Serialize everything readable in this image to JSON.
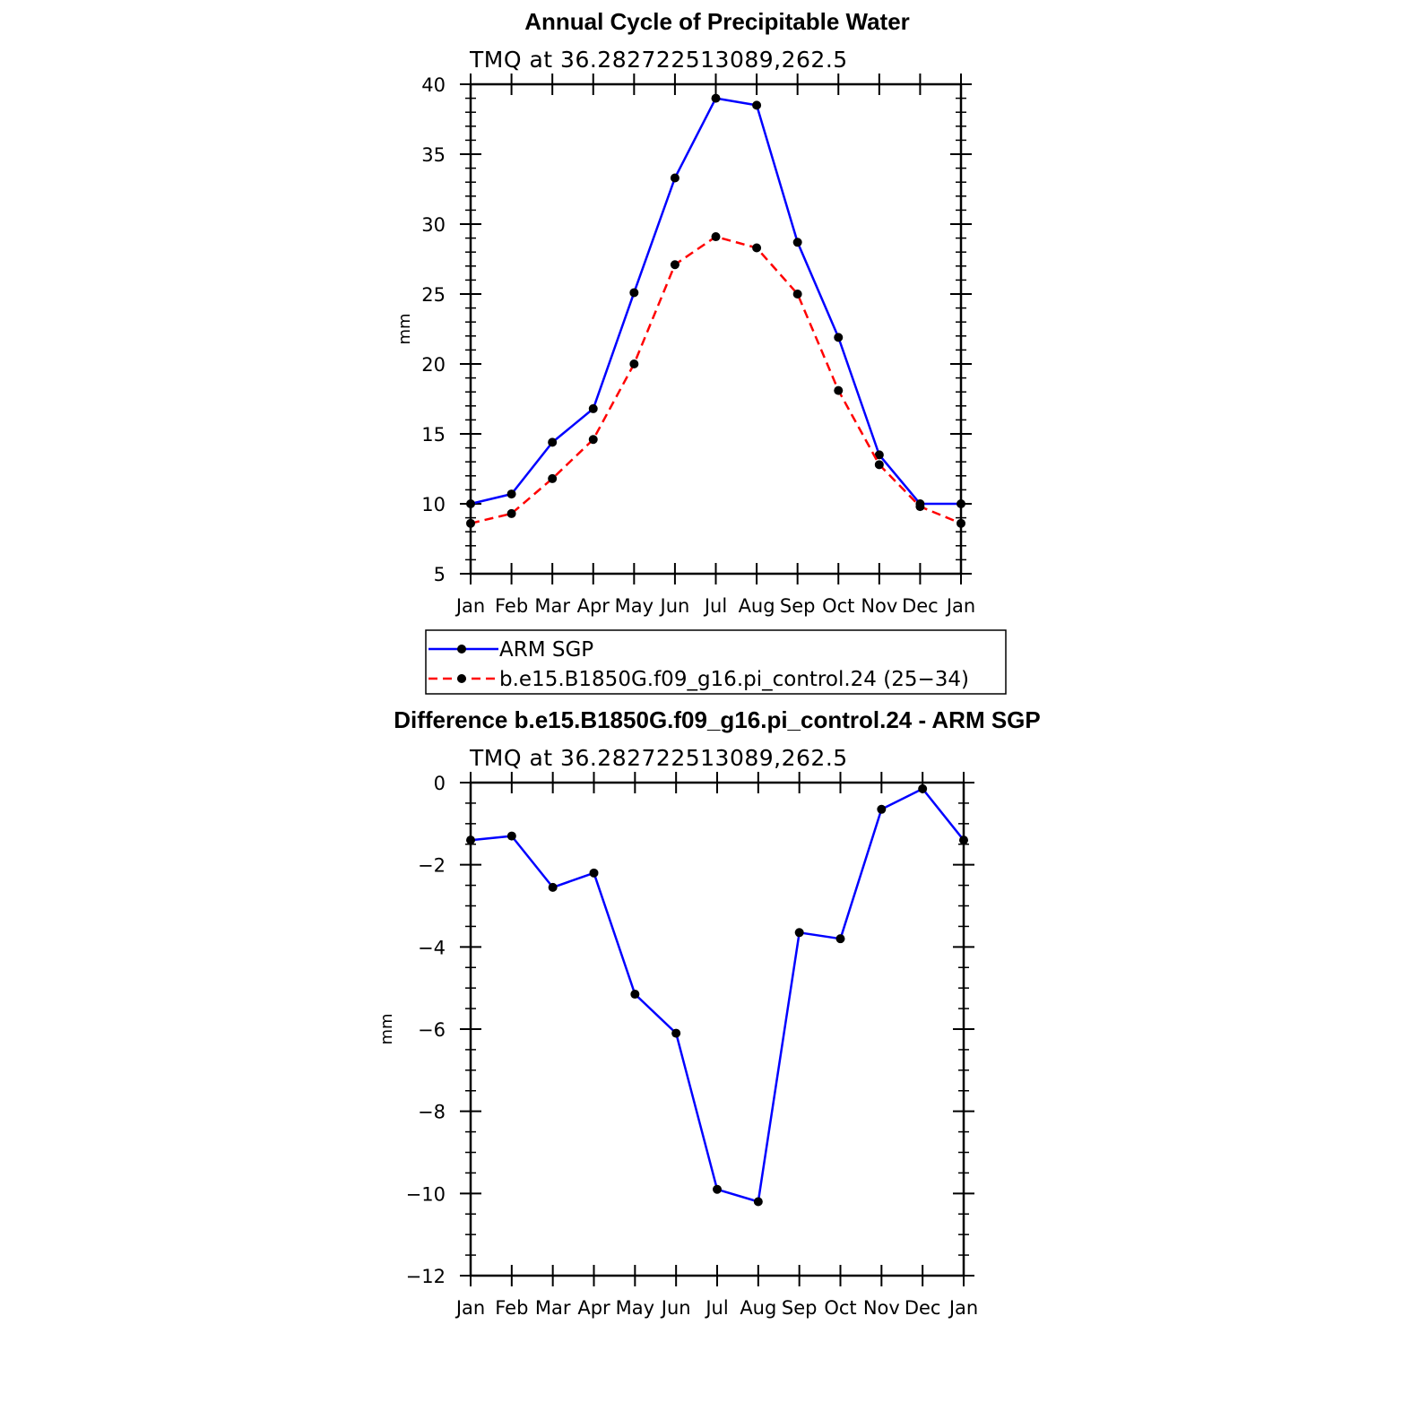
{
  "chart_data": [
    {
      "type": "line",
      "title": "Annual Cycle of Precipitable Water",
      "subtitle": "TMQ  at  36.282722513089,262.5",
      "ylabel": "mm",
      "categories": [
        "Jan",
        "Feb",
        "Mar",
        "Apr",
        "May",
        "Jun",
        "Jul",
        "Aug",
        "Sep",
        "Oct",
        "Nov",
        "Dec",
        "Jan"
      ],
      "ylim": [
        5,
        40
      ],
      "yticks": [
        "5",
        "10",
        "15",
        "20",
        "25",
        "30",
        "35",
        "40"
      ],
      "series": [
        {
          "name": "ARM  SGP",
          "color": "#0000ff",
          "dash": "solid",
          "values": [
            10.0,
            10.7,
            14.4,
            16.8,
            25.1,
            33.3,
            39.0,
            38.5,
            28.7,
            21.9,
            13.5,
            10.0,
            10.0
          ]
        },
        {
          "name": "b.e15.B1850G.f09_g16.pi_control.24  (25−34)",
          "color": "#ff0000",
          "dash": "dashed",
          "values": [
            8.6,
            9.3,
            11.8,
            14.6,
            20.0,
            27.1,
            29.1,
            28.3,
            25.0,
            18.1,
            12.8,
            9.8,
            8.6
          ]
        }
      ],
      "legend": "below"
    },
    {
      "type": "line",
      "title": "Difference b.e15.B1850G.f09_g16.pi_control.24 - ARM SGP",
      "subtitle": "TMQ  at  36.282722513089,262.5",
      "ylabel": "mm",
      "categories": [
        "Jan",
        "Feb",
        "Mar",
        "Apr",
        "May",
        "Jun",
        "Jul",
        "Aug",
        "Sep",
        "Oct",
        "Nov",
        "Dec",
        "Jan"
      ],
      "ylim": [
        -12,
        0
      ],
      "yticks": [
        "−12",
        "−10",
        "−8",
        "−6",
        "−4",
        "−2",
        "0"
      ],
      "series": [
        {
          "color": "#0000ff",
          "dash": "solid",
          "values": [
            -1.4,
            -1.3,
            -2.55,
            -2.2,
            -5.15,
            -6.1,
            -9.9,
            -10.2,
            -3.65,
            -3.8,
            -0.65,
            -0.15,
            -1.4
          ]
        }
      ]
    }
  ]
}
